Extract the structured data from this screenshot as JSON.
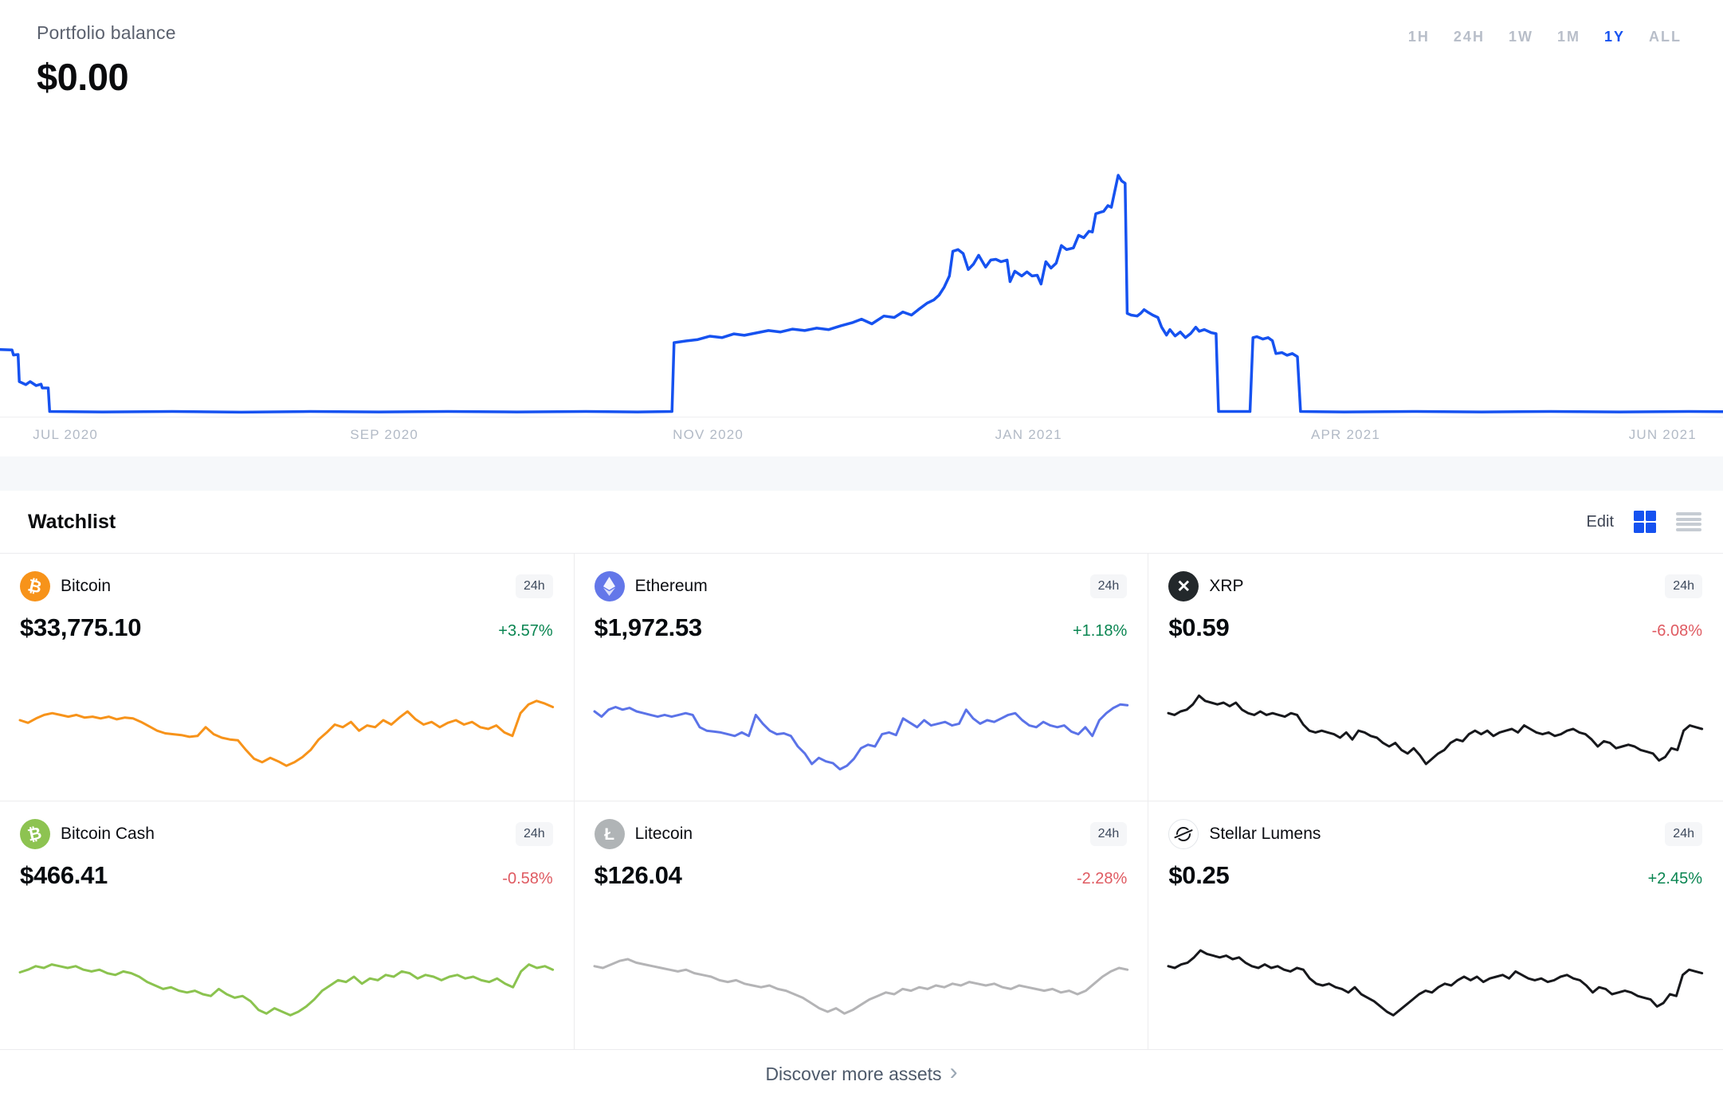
{
  "portfolio": {
    "label": "Portfolio balance",
    "balance": "$0.00",
    "ranges": [
      {
        "label": "1H",
        "active": false
      },
      {
        "label": "24H",
        "active": false
      },
      {
        "label": "1W",
        "active": false
      },
      {
        "label": "1M",
        "active": false
      },
      {
        "label": "1Y",
        "active": true
      },
      {
        "label": "ALL",
        "active": false
      }
    ]
  },
  "chart_data": {
    "type": "line",
    "title": "Portfolio balance over 1Y",
    "line_color": "#1652f0",
    "grid": false,
    "x_tick_labels": [
      "JUL 2020",
      "SEP 2020",
      "NOV 2020",
      "JAN 2021",
      "APR 2021",
      "JUN 2021"
    ],
    "y_range_note": "normalized 0-100, 0 = zero balance baseline, 100 = peak balance in JAN 2021",
    "points": [
      [
        0,
        26.6
      ],
      [
        0.7,
        26.4
      ],
      [
        0.78,
        24.3
      ],
      [
        1.05,
        24.5
      ],
      [
        1.12,
        13.1
      ],
      [
        1.5,
        11.8
      ],
      [
        1.75,
        13.1
      ],
      [
        2.1,
        11.4
      ],
      [
        2.38,
        12.0
      ],
      [
        2.45,
        10.4
      ],
      [
        2.8,
        10.4
      ],
      [
        2.88,
        0.5
      ],
      [
        6,
        0.3
      ],
      [
        10,
        0.5
      ],
      [
        14,
        0.2
      ],
      [
        18,
        0.5
      ],
      [
        22,
        0.3
      ],
      [
        26,
        0.5
      ],
      [
        30,
        0.3
      ],
      [
        34,
        0.5
      ],
      [
        37,
        0.3
      ],
      [
        39.0,
        0.5
      ],
      [
        39.12,
        29.5
      ],
      [
        39.8,
        30.2
      ],
      [
        40.5,
        30.8
      ],
      [
        41.2,
        32.2
      ],
      [
        41.9,
        31.6
      ],
      [
        42.6,
        33.2
      ],
      [
        43.2,
        32.6
      ],
      [
        43.9,
        33.6
      ],
      [
        44.6,
        34.6
      ],
      [
        45.3,
        34.0
      ],
      [
        46.0,
        35.2
      ],
      [
        46.7,
        34.6
      ],
      [
        47.4,
        35.6
      ],
      [
        48.1,
        35.0
      ],
      [
        48.8,
        36.6
      ],
      [
        49.5,
        38.0
      ],
      [
        50.0,
        39.4
      ],
      [
        50.6,
        37.4
      ],
      [
        51.3,
        40.7
      ],
      [
        51.9,
        40.1
      ],
      [
        52.4,
        42.4
      ],
      [
        52.9,
        41.1
      ],
      [
        53.3,
        43.4
      ],
      [
        53.8,
        46.1
      ],
      [
        54.2,
        47.5
      ],
      [
        54.5,
        49.5
      ],
      [
        54.8,
        52.9
      ],
      [
        55.1,
        57.6
      ],
      [
        55.3,
        68.0
      ],
      [
        55.6,
        68.7
      ],
      [
        55.9,
        67.0
      ],
      [
        56.2,
        60.3
      ],
      [
        56.5,
        62.6
      ],
      [
        56.8,
        66.3
      ],
      [
        57.2,
        61.3
      ],
      [
        57.5,
        64.3
      ],
      [
        57.8,
        64.6
      ],
      [
        58.1,
        63.6
      ],
      [
        58.45,
        64.3
      ],
      [
        58.62,
        55.2
      ],
      [
        58.9,
        59.6
      ],
      [
        59.3,
        57.6
      ],
      [
        59.6,
        59.3
      ],
      [
        59.9,
        57.6
      ],
      [
        60.2,
        57.9
      ],
      [
        60.42,
        54.2
      ],
      [
        60.7,
        63.6
      ],
      [
        61.0,
        60.9
      ],
      [
        61.3,
        63.0
      ],
      [
        61.6,
        70.4
      ],
      [
        61.9,
        68.7
      ],
      [
        62.3,
        69.4
      ],
      [
        62.6,
        74.7
      ],
      [
        62.9,
        73.7
      ],
      [
        63.2,
        76.4
      ],
      [
        63.4,
        76.1
      ],
      [
        63.6,
        83.8
      ],
      [
        63.9,
        84.5
      ],
      [
        64.05,
        84.8
      ],
      [
        64.3,
        87.2
      ],
      [
        64.5,
        86.5
      ],
      [
        64.7,
        93.3
      ],
      [
        64.9,
        100
      ],
      [
        65.1,
        97.6
      ],
      [
        65.3,
        96.6
      ],
      [
        65.42,
        41.8
      ],
      [
        65.65,
        41.1
      ],
      [
        66.0,
        40.7
      ],
      [
        66.2,
        41.8
      ],
      [
        66.4,
        43.4
      ],
      [
        66.6,
        42.4
      ],
      [
        66.9,
        41.1
      ],
      [
        67.2,
        40.1
      ],
      [
        67.42,
        36.0
      ],
      [
        67.7,
        32.7
      ],
      [
        67.9,
        35.0
      ],
      [
        68.2,
        32.3
      ],
      [
        68.5,
        34.0
      ],
      [
        68.8,
        31.6
      ],
      [
        69.1,
        33.3
      ],
      [
        69.4,
        36.0
      ],
      [
        69.6,
        34.3
      ],
      [
        69.9,
        35.0
      ],
      [
        70.3,
        33.7
      ],
      [
        70.58,
        33.3
      ],
      [
        70.72,
        0.5
      ],
      [
        72.55,
        0.5
      ],
      [
        72.72,
        31.6
      ],
      [
        72.95,
        32.0
      ],
      [
        73.3,
        31.0
      ],
      [
        73.6,
        31.6
      ],
      [
        73.85,
        30.3
      ],
      [
        74.05,
        24.9
      ],
      [
        74.4,
        25.3
      ],
      [
        74.7,
        24.2
      ],
      [
        75.0,
        24.9
      ],
      [
        75.3,
        23.6
      ],
      [
        75.48,
        0.5
      ],
      [
        78,
        0.3
      ],
      [
        82,
        0.5
      ],
      [
        86,
        0.3
      ],
      [
        90,
        0.5
      ],
      [
        94,
        0.3
      ],
      [
        98,
        0.5
      ],
      [
        100,
        0.4
      ]
    ]
  },
  "watchlist": {
    "title": "Watchlist",
    "edit_label": "Edit",
    "assets": [
      {
        "name": "Bitcoin",
        "icon_type": "glyph",
        "symbol_glyph": "₿",
        "icon_bg": "#f7931a",
        "icon_fg": "#ffffff",
        "period": "24h",
        "price": "$33,775.10",
        "change": "+3.57%",
        "direction": "up",
        "spark_color": "#f7931a",
        "spark": [
          60,
          57,
          62,
          66,
          68,
          66,
          64,
          66,
          63,
          64,
          62,
          64,
          61,
          63,
          62,
          58,
          53,
          48,
          45,
          44,
          43,
          41,
          42,
          52,
          44,
          40,
          38,
          37,
          26,
          16,
          12,
          17,
          13,
          8,
          12,
          18,
          26,
          38,
          46,
          55,
          52,
          58,
          48,
          54,
          52,
          60,
          55,
          63,
          70,
          61,
          55,
          58,
          52,
          57,
          60,
          55,
          58,
          52,
          50,
          54,
          46,
          42,
          68,
          78,
          82,
          79,
          75
        ]
      },
      {
        "name": "Ethereum",
        "icon_type": "ethereum",
        "symbol_glyph": "",
        "icon_bg": "#6377e9",
        "icon_fg": "#ffffff",
        "period": "24h",
        "price": "$1,972.53",
        "change": "+1.18%",
        "direction": "up",
        "spark_color": "#5b73e8",
        "spark": [
          70,
          64,
          72,
          75,
          72,
          74,
          70,
          68,
          66,
          64,
          66,
          64,
          66,
          68,
          66,
          52,
          48,
          47,
          46,
          44,
          42,
          46,
          42,
          66,
          56,
          48,
          44,
          45,
          42,
          30,
          22,
          10,
          17,
          13,
          11,
          4,
          8,
          16,
          28,
          32,
          30,
          44,
          46,
          43,
          62,
          57,
          52,
          60,
          54,
          56,
          58,
          54,
          56,
          72,
          62,
          56,
          60,
          58,
          62,
          66,
          68,
          60,
          54,
          52,
          58,
          54,
          52,
          54,
          47,
          44,
          52,
          42,
          60,
          68,
          74,
          78,
          77
        ]
      },
      {
        "name": "XRP",
        "icon_type": "glyph",
        "symbol_glyph": "✕",
        "icon_bg": "#23282b",
        "icon_fg": "#ffffff",
        "period": "24h",
        "price": "$0.59",
        "change": "-6.08%",
        "direction": "down",
        "spark_color": "#17181c",
        "spark": [
          68,
          66,
          70,
          72,
          78,
          88,
          82,
          80,
          78,
          80,
          76,
          80,
          72,
          68,
          66,
          70,
          66,
          68,
          66,
          64,
          68,
          66,
          55,
          48,
          46,
          48,
          46,
          44,
          40,
          46,
          38,
          48,
          46,
          42,
          40,
          34,
          30,
          34,
          26,
          22,
          28,
          20,
          10,
          16,
          22,
          26,
          34,
          38,
          36,
          44,
          48,
          44,
          48,
          42,
          46,
          48,
          50,
          46,
          54,
          50,
          46,
          44,
          46,
          42,
          44,
          48,
          50,
          46,
          44,
          38,
          30,
          36,
          34,
          28,
          30,
          32,
          30,
          26,
          24,
          22,
          14,
          18,
          28,
          26,
          48,
          54,
          52,
          50
        ]
      },
      {
        "name": "Bitcoin Cash",
        "icon_type": "glyph",
        "symbol_glyph": "₿",
        "icon_bg": "#8dc351",
        "icon_fg": "#ffffff",
        "period": "24h",
        "price": "$466.41",
        "change": "-0.58%",
        "direction": "down",
        "spark_color": "#8bc34f",
        "spark": [
          55,
          58,
          62,
          60,
          64,
          62,
          60,
          62,
          58,
          56,
          58,
          54,
          52,
          56,
          54,
          50,
          44,
          40,
          36,
          38,
          34,
          32,
          34,
          30,
          28,
          36,
          30,
          26,
          28,
          22,
          12,
          8,
          14,
          10,
          6,
          10,
          16,
          24,
          34,
          40,
          46,
          44,
          50,
          42,
          48,
          46,
          52,
          50,
          56,
          54,
          48,
          52,
          50,
          46,
          50,
          52,
          48,
          50,
          46,
          44,
          48,
          42,
          38,
          56,
          64,
          60,
          62,
          58
        ]
      },
      {
        "name": "Litecoin",
        "icon_type": "glyph",
        "symbol_glyph": "Ł",
        "icon_bg": "#b0b4b6",
        "icon_fg": "#ffffff",
        "period": "24h",
        "price": "$126.04",
        "change": "-2.28%",
        "direction": "down",
        "spark_color": "#b4b4b6",
        "spark": [
          62,
          60,
          64,
          68,
          70,
          66,
          64,
          62,
          60,
          58,
          56,
          58,
          54,
          52,
          50,
          46,
          44,
          46,
          42,
          40,
          38,
          40,
          36,
          34,
          30,
          26,
          20,
          14,
          10,
          14,
          8,
          12,
          18,
          24,
          28,
          32,
          30,
          36,
          34,
          38,
          36,
          40,
          38,
          42,
          40,
          44,
          42,
          40,
          42,
          38,
          36,
          40,
          38,
          36,
          34,
          36,
          32,
          34,
          30,
          34,
          42,
          50,
          56,
          60,
          58
        ]
      },
      {
        "name": "Stellar Lumens",
        "icon_type": "stellar",
        "symbol_glyph": "",
        "icon_bg": "#ffffff",
        "icon_fg": "#17181c",
        "period": "24h",
        "price": "$0.25",
        "change": "+2.45%",
        "direction": "up",
        "spark_color": "#17181c",
        "spark": [
          62,
          60,
          64,
          66,
          72,
          80,
          76,
          74,
          72,
          74,
          70,
          72,
          66,
          62,
          60,
          64,
          60,
          62,
          58,
          56,
          60,
          58,
          48,
          42,
          40,
          42,
          38,
          36,
          32,
          38,
          30,
          26,
          22,
          16,
          10,
          6,
          12,
          18,
          24,
          30,
          34,
          32,
          38,
          42,
          40,
          46,
          50,
          46,
          50,
          44,
          48,
          50,
          52,
          48,
          56,
          52,
          48,
          46,
          48,
          44,
          46,
          50,
          52,
          48,
          46,
          40,
          32,
          38,
          36,
          30,
          32,
          34,
          32,
          28,
          26,
          24,
          16,
          20,
          30,
          28,
          52,
          58,
          56,
          54
        ]
      }
    ]
  },
  "footer": {
    "discover_label": "Discover more assets",
    "chevron": "›"
  },
  "colors": {
    "accent": "#1652f0",
    "up": "#098551",
    "down": "#df5a61",
    "muted": "#b8bec9"
  }
}
